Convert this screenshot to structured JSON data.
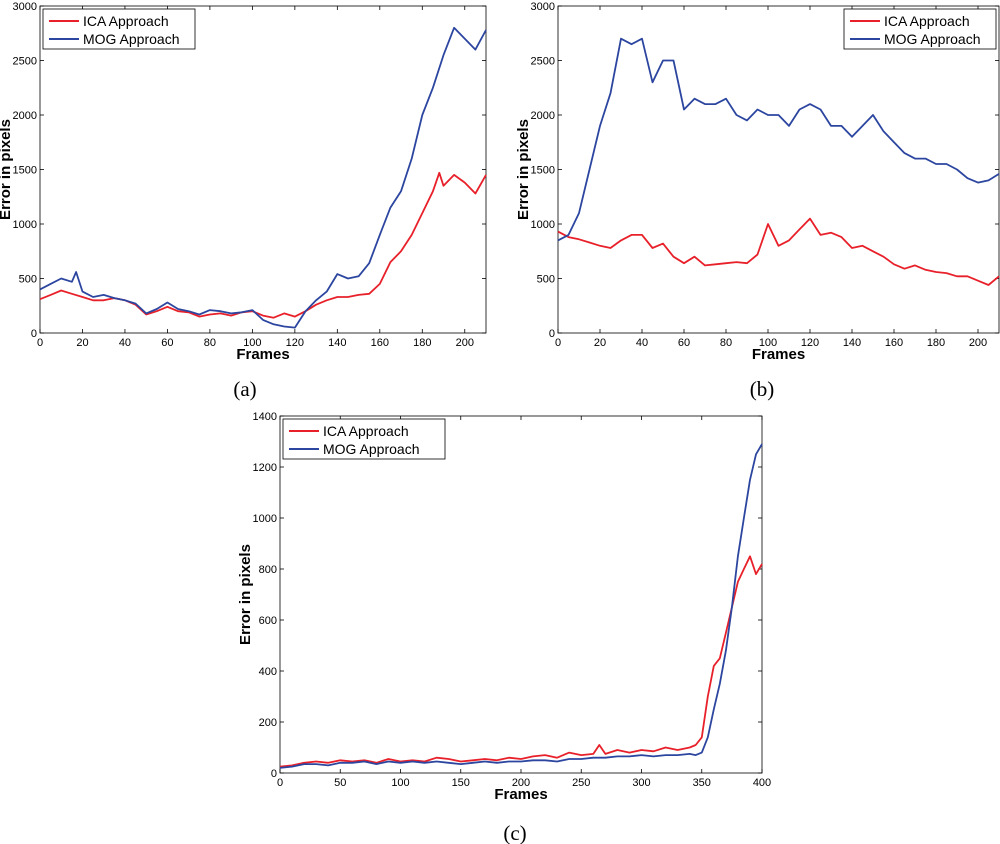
{
  "chart_data": [
    {
      "type": "line",
      "caption": "(a)",
      "xlabel": "Frames",
      "ylabel": "Error in pixels",
      "xlim": [
        0,
        210
      ],
      "ylim": [
        0,
        3000
      ],
      "xticks": [
        0,
        20,
        40,
        60,
        80,
        100,
        120,
        140,
        160,
        180,
        200
      ],
      "yticks": [
        0,
        500,
        1000,
        1500,
        2000,
        2500,
        3000
      ],
      "legend_position": "top-left",
      "series": [
        {
          "name": "ICA Approach",
          "color": "#e8202a",
          "x": [
            0,
            5,
            10,
            15,
            20,
            25,
            30,
            35,
            40,
            45,
            50,
            55,
            60,
            65,
            70,
            75,
            80,
            85,
            90,
            95,
            100,
            105,
            110,
            115,
            120,
            125,
            130,
            135,
            140,
            145,
            150,
            155,
            160,
            165,
            170,
            175,
            180,
            185,
            188,
            190,
            195,
            200,
            205,
            210
          ],
          "values": [
            310,
            350,
            390,
            360,
            330,
            300,
            300,
            320,
            300,
            260,
            170,
            200,
            240,
            200,
            190,
            150,
            170,
            180,
            160,
            190,
            200,
            160,
            140,
            180,
            150,
            200,
            260,
            300,
            330,
            330,
            350,
            360,
            450,
            650,
            750,
            900,
            1100,
            1300,
            1470,
            1350,
            1450,
            1380,
            1280,
            1450
          ]
        },
        {
          "name": "MOG Approach",
          "color": "#2c46a0",
          "x": [
            0,
            5,
            10,
            15,
            17,
            20,
            25,
            30,
            35,
            40,
            45,
            50,
            55,
            60,
            65,
            70,
            75,
            80,
            85,
            90,
            95,
            100,
            105,
            110,
            115,
            120,
            125,
            130,
            135,
            140,
            145,
            150,
            155,
            160,
            165,
            170,
            175,
            180,
            185,
            190,
            195,
            200,
            205,
            210
          ],
          "values": [
            400,
            450,
            500,
            470,
            560,
            380,
            330,
            350,
            320,
            300,
            270,
            180,
            220,
            280,
            220,
            200,
            170,
            210,
            200,
            180,
            190,
            210,
            120,
            80,
            60,
            50,
            200,
            300,
            380,
            540,
            500,
            520,
            640,
            900,
            1150,
            1300,
            1600,
            2000,
            2250,
            2550,
            2800,
            2700,
            2600,
            2780
          ]
        }
      ]
    },
    {
      "type": "line",
      "caption": "(b)",
      "xlabel": "Frames",
      "ylabel": "Error in pixels",
      "xlim": [
        0,
        210
      ],
      "ylim": [
        0,
        3000
      ],
      "xticks": [
        0,
        20,
        40,
        60,
        80,
        100,
        120,
        140,
        160,
        180,
        200
      ],
      "yticks": [
        0,
        500,
        1000,
        1500,
        2000,
        2500,
        3000
      ],
      "legend_position": "top-right",
      "series": [
        {
          "name": "ICA Approach",
          "color": "#e8202a",
          "x": [
            0,
            5,
            10,
            15,
            20,
            25,
            30,
            35,
            40,
            45,
            50,
            55,
            60,
            65,
            70,
            75,
            80,
            85,
            90,
            95,
            100,
            105,
            110,
            115,
            120,
            125,
            130,
            135,
            140,
            145,
            150,
            155,
            160,
            165,
            170,
            175,
            180,
            185,
            190,
            195,
            200,
            205,
            210
          ],
          "values": [
            930,
            880,
            860,
            830,
            800,
            780,
            850,
            900,
            900,
            780,
            820,
            700,
            640,
            700,
            620,
            630,
            640,
            650,
            640,
            720,
            1000,
            800,
            850,
            950,
            1050,
            900,
            920,
            880,
            780,
            800,
            750,
            700,
            630,
            590,
            620,
            580,
            560,
            550,
            520,
            520,
            480,
            440,
            520
          ]
        },
        {
          "name": "MOG Approach",
          "color": "#2c46a0",
          "x": [
            0,
            5,
            10,
            15,
            20,
            25,
            30,
            35,
            40,
            45,
            50,
            55,
            60,
            65,
            70,
            75,
            80,
            85,
            90,
            95,
            100,
            105,
            110,
            115,
            120,
            125,
            130,
            135,
            140,
            145,
            150,
            155,
            160,
            165,
            170,
            175,
            180,
            185,
            190,
            195,
            200,
            205,
            210
          ],
          "values": [
            850,
            900,
            1100,
            1500,
            1900,
            2200,
            2700,
            2650,
            2700,
            2300,
            2500,
            2500,
            2050,
            2150,
            2100,
            2100,
            2150,
            2000,
            1950,
            2050,
            2000,
            2000,
            1900,
            2050,
            2100,
            2050,
            1900,
            1900,
            1800,
            1900,
            2000,
            1850,
            1750,
            1650,
            1600,
            1600,
            1550,
            1550,
            1500,
            1420,
            1380,
            1400,
            1460
          ]
        }
      ]
    },
    {
      "type": "line",
      "caption": "(c)",
      "xlabel": "Frames",
      "ylabel": "Error in pixels",
      "xlim": [
        0,
        400
      ],
      "ylim": [
        0,
        1400
      ],
      "xticks": [
        0,
        50,
        100,
        150,
        200,
        250,
        300,
        350,
        400
      ],
      "yticks": [
        0,
        200,
        400,
        600,
        800,
        1000,
        1200,
        1400
      ],
      "legend_position": "top-left",
      "series": [
        {
          "name": "ICA Approach",
          "color": "#e8202a",
          "x": [
            0,
            10,
            20,
            30,
            40,
            50,
            60,
            70,
            80,
            90,
            100,
            110,
            120,
            130,
            140,
            150,
            160,
            170,
            180,
            190,
            200,
            210,
            220,
            230,
            240,
            250,
            260,
            265,
            270,
            280,
            290,
            300,
            310,
            320,
            330,
            340,
            345,
            350,
            355,
            360,
            365,
            370,
            375,
            380,
            385,
            390,
            395,
            400
          ],
          "values": [
            25,
            30,
            40,
            45,
            40,
            50,
            45,
            50,
            40,
            55,
            45,
            50,
            45,
            60,
            55,
            45,
            50,
            55,
            50,
            60,
            55,
            65,
            70,
            60,
            80,
            70,
            75,
            110,
            75,
            90,
            80,
            90,
            85,
            100,
            90,
            100,
            110,
            140,
            300,
            420,
            450,
            550,
            650,
            750,
            800,
            850,
            780,
            820
          ]
        },
        {
          "name": "MOG Approach",
          "color": "#2c46a0",
          "x": [
            0,
            10,
            20,
            30,
            40,
            50,
            60,
            70,
            80,
            90,
            100,
            110,
            120,
            130,
            140,
            150,
            160,
            170,
            180,
            190,
            200,
            210,
            220,
            230,
            240,
            250,
            260,
            270,
            280,
            290,
            300,
            310,
            320,
            330,
            340,
            345,
            350,
            355,
            360,
            365,
            370,
            375,
            380,
            385,
            390,
            395,
            400
          ],
          "values": [
            20,
            25,
            35,
            35,
            30,
            40,
            40,
            45,
            35,
            45,
            40,
            45,
            40,
            45,
            40,
            35,
            40,
            45,
            40,
            45,
            45,
            50,
            50,
            45,
            55,
            55,
            60,
            60,
            65,
            65,
            70,
            65,
            70,
            70,
            75,
            70,
            80,
            140,
            250,
            350,
            480,
            650,
            850,
            1000,
            1150,
            1250,
            1290
          ]
        }
      ]
    }
  ]
}
